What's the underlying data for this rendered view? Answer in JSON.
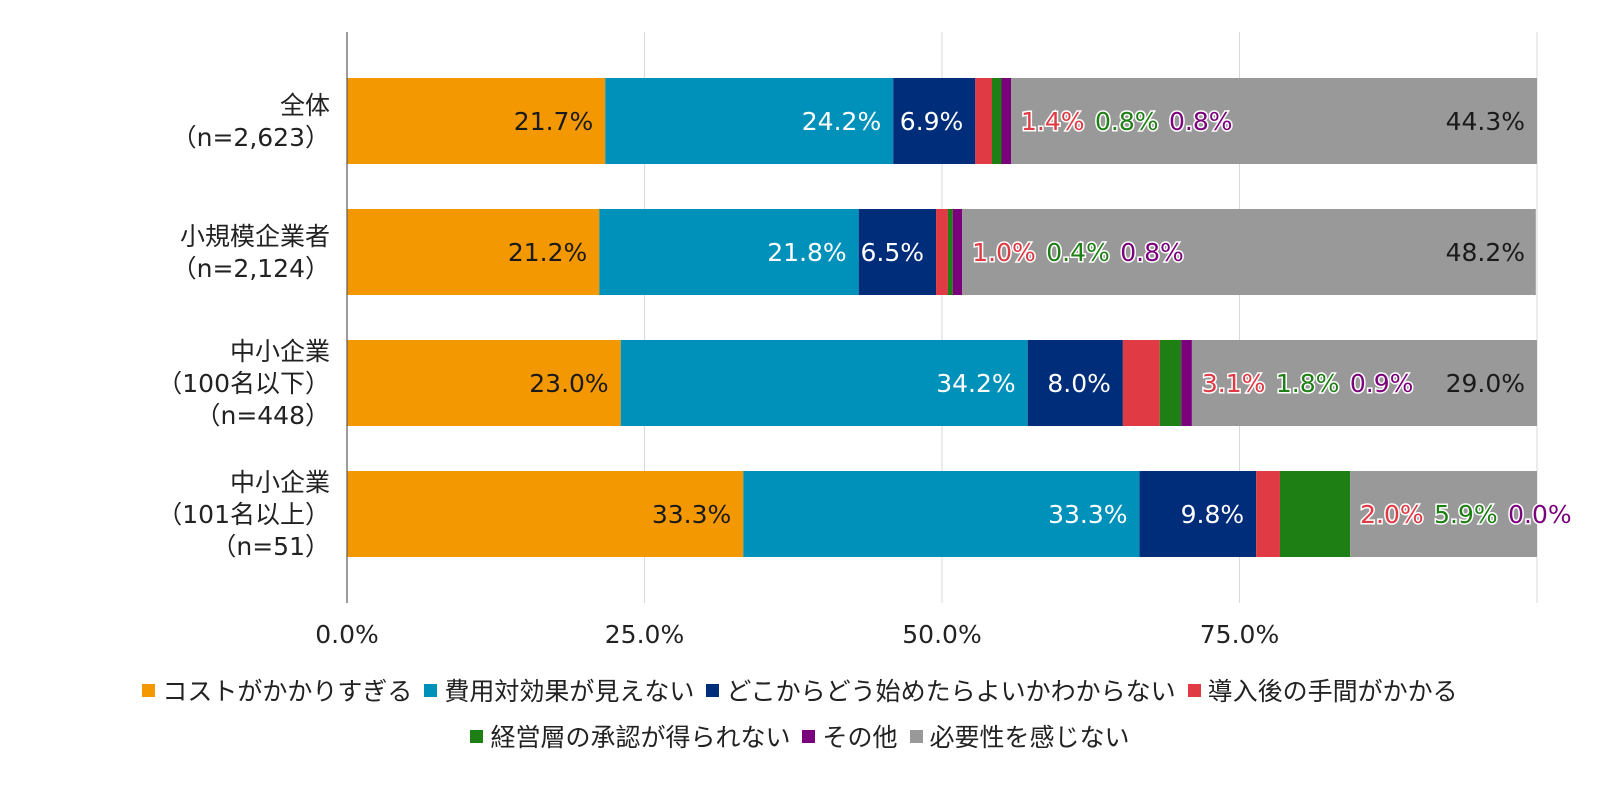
{
  "chart_data": {
    "type": "bar",
    "orientation": "horizontal",
    "stacked": true,
    "percent_stacked": true,
    "categories": [
      [
        "全体",
        "（n=2,623）"
      ],
      [
        "小規模企業者",
        "（n=2,124）"
      ],
      [
        "中小企業",
        "（100名以下）",
        "（n=448）"
      ],
      [
        "中小企業",
        "（101名以上）",
        "（n=51）"
      ]
    ],
    "series": [
      {
        "name": "コストがかかりすぎる",
        "color": "#F39800",
        "label_color": "#1a1a1a",
        "label_outline": false,
        "values": [
          21.7,
          21.2,
          23.0,
          33.3
        ],
        "labels": [
          "21.7%",
          "21.2%",
          "23.0%",
          "33.3%"
        ]
      },
      {
        "name": "費用対効果が見えない",
        "color": "#0091BA",
        "label_color": "#ffffff",
        "label_outline": false,
        "values": [
          24.2,
          21.8,
          34.2,
          33.3
        ],
        "labels": [
          "24.2%",
          "21.8%",
          "34.2%",
          "33.3%"
        ]
      },
      {
        "name": "どこからどう始めたらよいかわからない",
        "color": "#002D7A",
        "label_color": "#ffffff",
        "label_outline": false,
        "values": [
          6.9,
          6.5,
          8.0,
          9.8
        ],
        "labels": [
          "6.9%",
          "6.5%",
          "8.0%",
          "9.8%"
        ]
      },
      {
        "name": "導入後の手間がかかる",
        "color": "#E03A45",
        "label_color": "#E03A45",
        "label_outline": true,
        "values": [
          1.4,
          1.0,
          3.1,
          2.0
        ],
        "labels": [
          "1.4%",
          "1.0%",
          "3.1%",
          "2.0%"
        ]
      },
      {
        "name": "経営層の承認が得られない",
        "color": "#1E7F14",
        "label_color": "#1E7F14",
        "label_outline": true,
        "values": [
          0.8,
          0.4,
          1.8,
          5.9
        ],
        "labels": [
          "0.8%",
          "0.4%",
          "1.8%",
          "5.9%"
        ]
      },
      {
        "name": "その他",
        "color": "#7B007B",
        "label_color": "#7B007B",
        "label_outline": true,
        "values": [
          0.8,
          0.8,
          0.9,
          0.0
        ],
        "labels": [
          "0.8%",
          "0.8%",
          "0.9%",
          "0.0%"
        ]
      },
      {
        "name": "必要性を感じない",
        "color": "#999999",
        "label_color": "#1a1a1a",
        "label_outline": false,
        "values": [
          44.3,
          48.2,
          29.0,
          15.7
        ],
        "labels": [
          "44.3%",
          "48.2%",
          "29.0%",
          ""
        ]
      }
    ],
    "x_ticks": [
      "0.0%",
      "25.0%",
      "50.0%",
      "75.0%"
    ],
    "x_tick_values": [
      0,
      25,
      50,
      75
    ],
    "xlim": [
      0,
      100
    ],
    "gridlines": [
      25,
      50,
      75,
      100
    ],
    "grid": true,
    "legend_position": "bottom",
    "title": "",
    "xlabel": "",
    "ylabel": ""
  }
}
